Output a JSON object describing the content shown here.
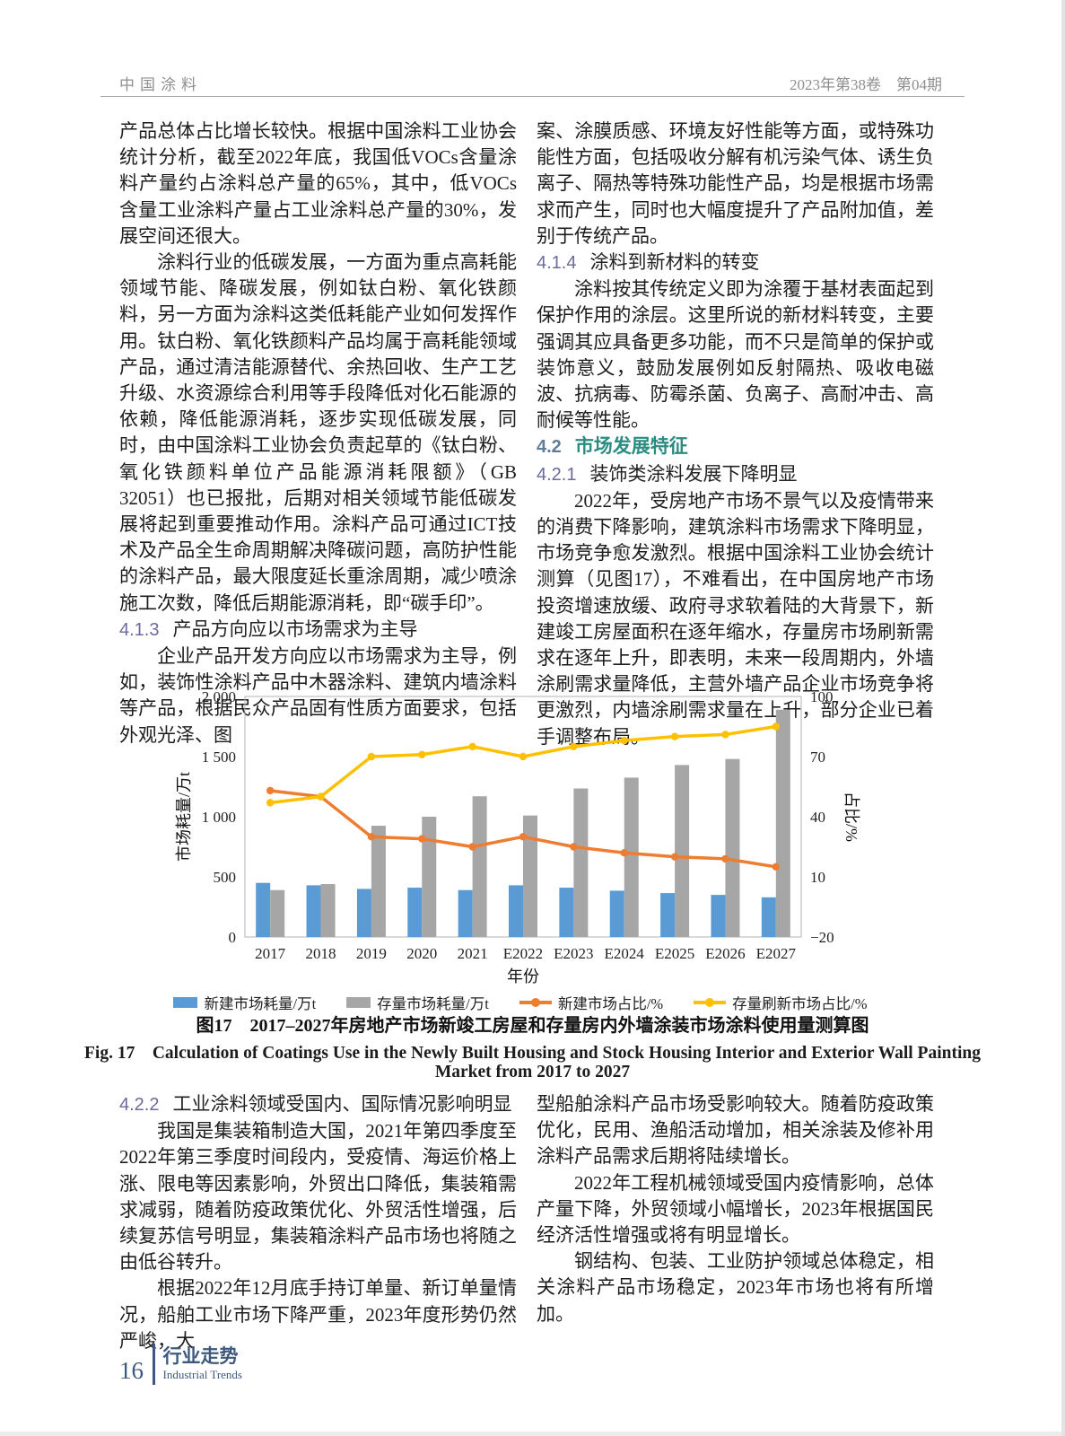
{
  "header": {
    "journal": "中国涂料",
    "issue": "2023年第38卷　第04期"
  },
  "article": {
    "top_left": [
      {
        "type": "p",
        "indent": false,
        "text": "产品总体占比增长较快。根据中国涂料工业协会统计分析，截至2022年底，我国低VOCs含量涂料产量约占涂料总产量的65%，其中，低VOCs含量工业涂料产量占工业涂料总产量的30%，发展空间还很大。"
      },
      {
        "type": "p",
        "indent": true,
        "text": "涂料行业的低碳发展，一方面为重点高耗能领域节能、降碳发展，例如钛白粉、氧化铁颜料，另一方面为涂料这类低耗能产业如何发挥作用。钛白粉、氧化铁颜料产品均属于高耗能领域产品，通过清洁能源替代、余热回收、生产工艺升级、水资源综合利用等手段降低对化石能源的依赖，降低能源消耗，逐步实现低碳发展，同时，由中国涂料工业协会负责起草的《钛白粉、氧化铁颜料单位产品能源消耗限额》（GB 32051）也已报批，后期对相关领域节能低碳发展将起到重要推动作用。涂料产品可通过ICT技术及产品全生命周期解决降碳问题，高防护性能的涂料产品，最大限度延长重涂周期，减少喷涂施工次数，降低后期能源消耗，即“碳手印”。"
      },
      {
        "type": "heading",
        "level": 3,
        "num": "4.1.3",
        "title": "产品方向应以市场需求为主导"
      },
      {
        "type": "p",
        "indent": true,
        "text": "企业产品开发方向应以市场需求为主导，例如，装饰性涂料产品中木器涂料、建筑内墙涂料等产品，根据民众产品固有性质方面要求，包括外观光泽、图"
      }
    ],
    "top_right": [
      {
        "type": "p",
        "indent": false,
        "text": "案、涂膜质感、环境友好性能等方面，或特殊功能性方面，包括吸收分解有机污染气体、诱生负离子、隔热等特殊功能性产品，均是根据市场需求而产生，同时也大幅度提升了产品附加值，差别于传统产品。"
      },
      {
        "type": "heading",
        "level": 3,
        "num": "4.1.4",
        "title": "涂料到新材料的转变"
      },
      {
        "type": "p",
        "indent": true,
        "text": "涂料按其传统定义即为涂覆于基材表面起到保护作用的涂层。这里所说的新材料转变，主要强调其应具备更多功能，而不只是简单的保护或装饰意义，鼓励发展例如反射隔热、吸收电磁波、抗病毒、防霉杀菌、负离子、高耐冲击、高耐候等性能。"
      },
      {
        "type": "heading",
        "level": 2,
        "num": "4.2",
        "title": "市场发展特征"
      },
      {
        "type": "heading",
        "level": 3,
        "num": "4.2.1",
        "title": "装饰类涂料发展下降明显"
      },
      {
        "type": "p",
        "indent": true,
        "text": "2022年，受房地产市场不景气以及疫情带来的消费下降影响，建筑涂料市场需求下降明显，市场竞争愈发激烈。根据中国涂料工业协会统计测算（见图17），不难看出，在中国房地产市场投资增速放缓、政府寻求软着陆的大背景下，新建竣工房屋面积在逐年缩水，存量房市场刷新需求在逐年上升，即表明，未来一段周期内，外墙涂刷需求量降低，主营外墙产品企业市场竞争将更激烈，内墙涂刷需求量在上升，部分企业已着手调整布局。"
      }
    ],
    "bottom_left": [
      {
        "type": "heading",
        "level": 3,
        "num": "4.2.2",
        "title": "工业涂料领域受国内、国际情况影响明显"
      },
      {
        "type": "p",
        "indent": true,
        "text": "我国是集装箱制造大国，2021年第四季度至2022年第三季度时间段内，受疫情、海运价格上涨、限电等因素影响，外贸出口降低，集装箱需求减弱，随着防疫政策优化、外贸活性增强，后续复苏信号明显，集装箱涂料产品市场也将随之由低谷转升。"
      },
      {
        "type": "p",
        "indent": true,
        "text": "根据2022年12月底手持订单量、新订单量情况，船舶工业市场下降严重，2023年度形势仍然严峻，大"
      }
    ],
    "bottom_right": [
      {
        "type": "p",
        "indent": false,
        "text": "型船舶涂料产品市场受影响较大。随着防疫政策优化，民用、渔船活动增加，相关涂装及修补用涂料产品需求后期将陆续增长。"
      },
      {
        "type": "p",
        "indent": true,
        "text": "2022年工程机械领域受国内疫情影响，总体产量下降，外贸领域小幅增长，2023年根据国民经济活性增强或将有明显增长。"
      },
      {
        "type": "p",
        "indent": true,
        "text": "钢结构、包装、工业防护领域总体稳定，相关涂料产品市场稳定，2023年市场也将有所增加。"
      }
    ]
  },
  "chart_data": {
    "type": "bar+line",
    "categories": [
      "2017",
      "2018",
      "2019",
      "2020",
      "2021",
      "E2022",
      "E2023",
      "E2024",
      "E2025",
      "E2026",
      "E2027"
    ],
    "series": [
      {
        "name": "新建市场耗量/万t",
        "type": "bar",
        "axis": "left",
        "color": "#5B9BD5",
        "values": [
          450,
          430,
          400,
          410,
          390,
          430,
          410,
          385,
          365,
          350,
          330
        ]
      },
      {
        "name": "存量市场耗量/万t",
        "type": "bar",
        "axis": "left",
        "color": "#A6A6A6",
        "values": [
          390,
          440,
          925,
          1000,
          1170,
          1010,
          1235,
          1325,
          1430,
          1480,
          1890
        ]
      },
      {
        "name": "新建市场占比/%",
        "type": "line",
        "axis": "right",
        "color": "#ED7D31",
        "values": [
          53,
          50,
          30,
          29,
          25,
          30,
          25,
          22,
          20,
          19,
          15
        ]
      },
      {
        "name": "存量刷新市场占比/%",
        "type": "line",
        "axis": "right",
        "color": "#FFC000",
        "values": [
          47,
          50,
          70,
          71,
          75,
          70,
          75,
          78,
          80,
          81,
          85
        ]
      }
    ],
    "xlabel": "年份",
    "ylabel_left": "市场耗量/万t",
    "ylabel_right": "占比/%",
    "ylim_left": [
      0,
      2000
    ],
    "yticks_left_values": [
      0,
      500,
      1000,
      1500,
      2000
    ],
    "yticks_left": [
      "0",
      "500",
      "1 000",
      "1 500",
      "2 000"
    ],
    "ylim_right": [
      -20,
      100
    ],
    "yticks_right_values": [
      -20,
      10,
      40,
      70,
      100
    ],
    "yticks_right": [
      "−20",
      "10",
      "40",
      "70",
      "100"
    ],
    "grid": false,
    "legend_position": "bottom"
  },
  "figure": {
    "caption_cn": "图17　2017–2027年房地产市场新竣工房屋和存量房内外墙涂装市场涂料使用量测算图",
    "caption_en1": "Fig. 17　Calculation of Coatings Use in the Newly Built Housing and Stock Housing Interior and Exterior Wall Painting",
    "caption_en2": "Market from 2017 to 2027"
  },
  "footer": {
    "page_number": "16",
    "section_cn": "行业走势",
    "section_en": "Industrial Trends"
  },
  "colors": {
    "accent_teal": "#2A8C80",
    "section_number": "#6B6B9D",
    "footer_blue": "#3D5A7E",
    "bar_blue": "#5B9BD5",
    "bar_gray": "#A6A6A6",
    "line_orange": "#ED7D31",
    "line_yellow": "#FFC000"
  }
}
